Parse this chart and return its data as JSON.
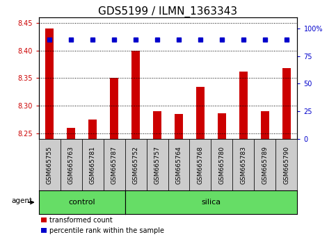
{
  "title": "GDS5199 / ILMN_1363343",
  "samples": [
    "GSM665755",
    "GSM665763",
    "GSM665781",
    "GSM665787",
    "GSM665752",
    "GSM665757",
    "GSM665764",
    "GSM665768",
    "GSM665780",
    "GSM665783",
    "GSM665789",
    "GSM665790"
  ],
  "red_values": [
    8.44,
    8.26,
    8.275,
    8.35,
    8.4,
    8.29,
    8.285,
    8.334,
    8.287,
    8.362,
    8.29,
    8.368
  ],
  "blue_values": [
    90,
    90,
    90,
    90,
    90,
    90,
    90,
    90,
    90,
    90,
    90,
    90
  ],
  "ylim_left": [
    8.24,
    8.46
  ],
  "ylim_right": [
    0,
    110
  ],
  "yticks_left": [
    8.25,
    8.3,
    8.35,
    8.4,
    8.45
  ],
  "yticks_right": [
    0,
    25,
    50,
    75,
    100
  ],
  "yticks_right_labels": [
    "0",
    "25",
    "50",
    "75",
    "100%"
  ],
  "n_control": 4,
  "n_silica": 8,
  "bar_color": "#cc0000",
  "dot_color": "#0000cc",
  "agent_label": "agent",
  "control_label": "control",
  "silica_label": "silica",
  "green_color": "#66dd66",
  "sample_bg_color": "#cccccc",
  "legend_red": "transformed count",
  "legend_blue": "percentile rank within the sample",
  "title_fontsize": 11,
  "axis_color_left": "#cc0000",
  "axis_color_right": "#0000cc",
  "bar_width": 0.4
}
